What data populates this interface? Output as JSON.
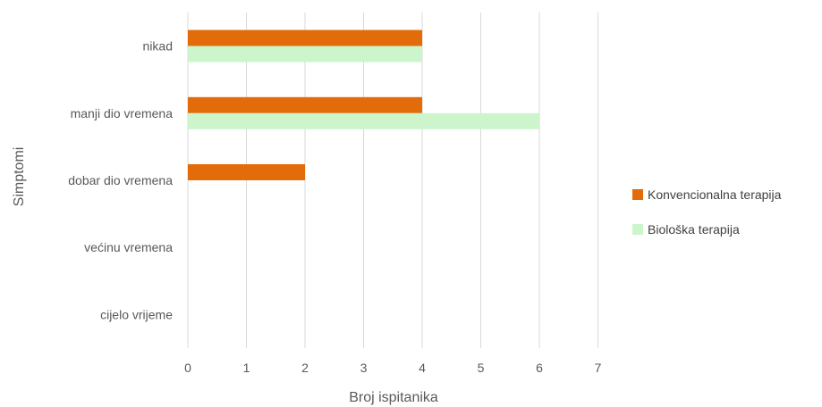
{
  "chart_data": {
    "type": "bar",
    "orientation": "horizontal",
    "categories": [
      "nikad",
      "manji dio vremena",
      "dobar dio vremena",
      "većinu vremena",
      "cijelo vrijeme"
    ],
    "series": [
      {
        "name": "Konvencionalna terapija",
        "values": [
          4,
          4,
          2,
          0,
          0
        ],
        "color": "#e26b0a"
      },
      {
        "name": "Biološka terapija",
        "values": [
          4,
          6,
          0,
          0,
          0
        ],
        "color": "#ccf5cc"
      }
    ],
    "xlabel": "Broj ispitanika",
    "ylabel": "Simptomi",
    "xlim": [
      0,
      7
    ],
    "xticks": [
      "0",
      "1",
      "2",
      "3",
      "4",
      "5",
      "6",
      "7"
    ],
    "grid": "vertical",
    "legend": "right"
  }
}
